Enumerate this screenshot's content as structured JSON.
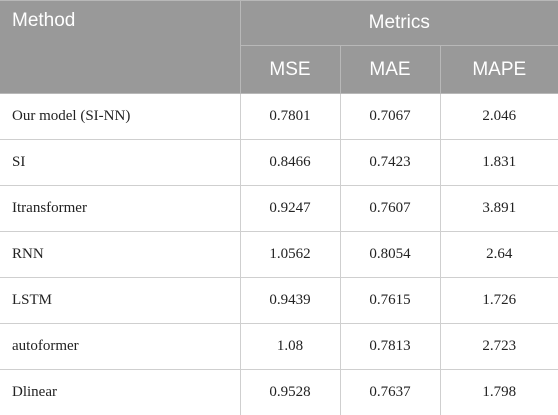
{
  "table": {
    "header": {
      "method": "Method",
      "metrics": "Metrics",
      "columns": [
        "MSE",
        "MAE",
        "MAPE"
      ]
    },
    "rows": [
      {
        "method": "Our model (SI-NN)",
        "mse": "0.7801",
        "mae": "0.7067",
        "mape": "2.046"
      },
      {
        "method": "SI",
        "mse": "0.8466",
        "mae": "0.7423",
        "mape": "1.831"
      },
      {
        "method": "Itransformer",
        "mse": "0.9247",
        "mae": "0.7607",
        "mape": "3.891"
      },
      {
        "method": "RNN",
        "mse": "1.0562",
        "mae": "0.8054",
        "mape": "2.64"
      },
      {
        "method": "LSTM",
        "mse": "0.9439",
        "mae": "0.7615",
        "mape": "1.726"
      },
      {
        "method": "autoformer",
        "mse": "1.08",
        "mae": "0.7813",
        "mape": "2.723"
      },
      {
        "method": "Dlinear",
        "mse": "0.9528",
        "mae": "0.7637",
        "mape": "1.798"
      }
    ]
  }
}
